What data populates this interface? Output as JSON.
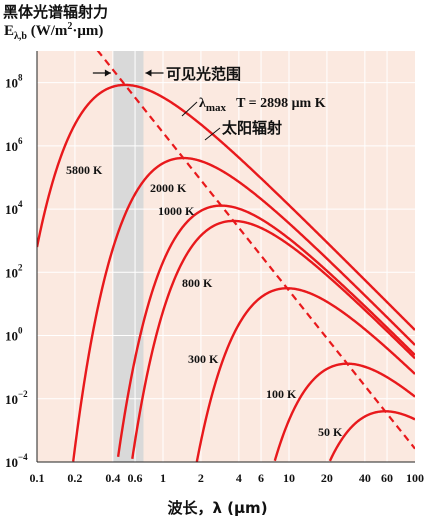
{
  "chart_data": {
    "type": "line",
    "title": "黑体光谱辐射力",
    "ylabel": "E_λ,b (W/m²·μm)",
    "ylabel_parts": {
      "main": "E",
      "sub": "λ,b",
      "unit_a": " (W/m",
      "sup": "2",
      "unit_b": "·μm)"
    },
    "xlabel": "波长，λ (μm)",
    "x_scale": "log",
    "y_scale": "log",
    "xlim": [
      0.1,
      100
    ],
    "ylim": [
      0.0001,
      1000000000
    ],
    "grid": true,
    "x_ticks": [
      {
        "v": 0.1,
        "l": "0.1"
      },
      {
        "v": 0.2,
        "l": "0.2"
      },
      {
        "v": 0.4,
        "l": "0.4"
      },
      {
        "v": 0.6,
        "l": "0.6"
      },
      {
        "v": 1,
        "l": "1"
      },
      {
        "v": 2,
        "l": "2"
      },
      {
        "v": 4,
        "l": "4"
      },
      {
        "v": 6,
        "l": "6"
      },
      {
        "v": 10,
        "l": "10"
      },
      {
        "v": 20,
        "l": "20"
      },
      {
        "v": 40,
        "l": "40"
      },
      {
        "v": 60,
        "l": "60"
      },
      {
        "v": 100,
        "l": "100"
      }
    ],
    "y_ticks": [
      {
        "exp": -4,
        "base": "10",
        "sup": "−4"
      },
      {
        "exp": -2,
        "base": "10",
        "sup": "−2"
      },
      {
        "exp": 0,
        "base": "10",
        "sup": "0"
      },
      {
        "exp": 2,
        "base": "10",
        "sup": "2"
      },
      {
        "exp": 4,
        "base": "10",
        "sup": "4"
      },
      {
        "exp": 6,
        "base": "10",
        "sup": "6"
      },
      {
        "exp": 8,
        "base": "10",
        "sup": "8"
      }
    ],
    "series": [
      {
        "name": "5800 K",
        "temperature": 5800
      },
      {
        "name": "2000 K",
        "temperature": 2000
      },
      {
        "name": "1000 K",
        "temperature": 1000
      },
      {
        "name": "800 K",
        "temperature": 800
      },
      {
        "name": "300 K",
        "temperature": 300
      },
      {
        "name": "100 K",
        "temperature": 100
      },
      {
        "name": "50 K",
        "temperature": 50
      }
    ],
    "wien_line": {
      "name_main": "λ",
      "name_sub": "max",
      "equation": "T = 2898 μm  K",
      "constant": 2898
    },
    "visible_band": {
      "range": [
        0.4,
        0.7
      ],
      "label": "可见光范围"
    },
    "annotations": [
      "太阳辐射"
    ],
    "colors": {
      "background": "#fbe9e0",
      "curve": "#e8191c",
      "band": "#d9d9d9",
      "grid": "#ffffff"
    }
  }
}
